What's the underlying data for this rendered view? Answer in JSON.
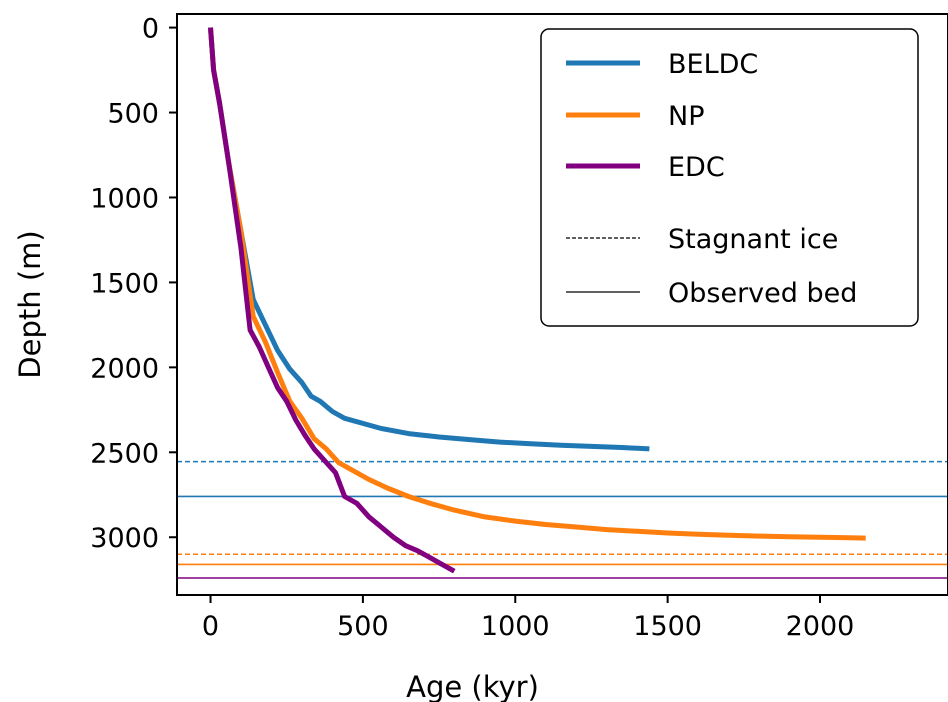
{
  "chart_data": {
    "type": "line",
    "xlabel": "Age (kyr)",
    "ylabel": "Depth (m)",
    "xlim": [
      -110,
      2420
    ],
    "ylim": [
      3340,
      -80
    ],
    "y_inverted": true,
    "xticks": [
      0,
      500,
      1000,
      1500,
      2000
    ],
    "yticks": [
      0,
      500,
      1000,
      1500,
      2000,
      2500,
      3000
    ],
    "grid": false,
    "legend_position": "top-right",
    "series": [
      {
        "name": "BELDC",
        "color": "#1f77b4",
        "x": [
          0,
          10,
          30,
          60,
          100,
          140,
          180,
          220,
          260,
          300,
          330,
          360,
          400,
          440,
          500,
          560,
          650,
          750,
          850,
          950,
          1050,
          1150,
          1250,
          1350,
          1440
        ],
        "y": [
          0,
          250,
          450,
          800,
          1200,
          1600,
          1750,
          1900,
          2010,
          2090,
          2170,
          2200,
          2260,
          2300,
          2330,
          2360,
          2390,
          2410,
          2425,
          2440,
          2450,
          2458,
          2465,
          2472,
          2480
        ]
      },
      {
        "name": "NP",
        "color": "#ff7f0e",
        "x": [
          0,
          10,
          30,
          60,
          100,
          140,
          180,
          220,
          260,
          300,
          340,
          380,
          420,
          460,
          520,
          580,
          650,
          720,
          800,
          900,
          1000,
          1100,
          1200,
          1300,
          1400,
          1500,
          1600,
          1700,
          1800,
          1900,
          2000,
          2100,
          2150
        ],
        "y": [
          0,
          250,
          450,
          800,
          1200,
          1700,
          1850,
          2030,
          2200,
          2300,
          2420,
          2480,
          2560,
          2600,
          2660,
          2710,
          2760,
          2800,
          2840,
          2880,
          2905,
          2925,
          2940,
          2955,
          2965,
          2975,
          2982,
          2988,
          2993,
          2997,
          3000,
          3003,
          3005
        ]
      },
      {
        "name": "EDC",
        "color": "#800080",
        "x": [
          0,
          10,
          30,
          60,
          100,
          130,
          160,
          190,
          220,
          250,
          280,
          310,
          340,
          380,
          410,
          440,
          480,
          520,
          560,
          600,
          640,
          680,
          720,
          760,
          800
        ],
        "y": [
          0,
          250,
          450,
          800,
          1300,
          1780,
          1880,
          2000,
          2120,
          2200,
          2310,
          2400,
          2480,
          2560,
          2620,
          2760,
          2800,
          2880,
          2940,
          3000,
          3050,
          3080,
          3120,
          3160,
          3200
        ]
      }
    ],
    "reference_lines": [
      {
        "series": "BELDC",
        "kind": "Stagnant ice",
        "depth": 2555,
        "color": "#1f77b4",
        "style": "dashed"
      },
      {
        "series": "BELDC",
        "kind": "Observed bed",
        "depth": 2760,
        "color": "#1f77b4",
        "style": "solid"
      },
      {
        "series": "NP",
        "kind": "Stagnant ice",
        "depth": 3100,
        "color": "#ff7f0e",
        "style": "dashed"
      },
      {
        "series": "NP",
        "kind": "Observed bed",
        "depth": 3160,
        "color": "#ff7f0e",
        "style": "solid"
      },
      {
        "series": "EDC",
        "kind": "Observed bed",
        "depth": 3240,
        "color": "#800080",
        "style": "solid"
      }
    ],
    "legend": [
      {
        "label": "BELDC",
        "color": "#1f77b4",
        "style": "thick"
      },
      {
        "label": "NP",
        "color": "#ff7f0e",
        "style": "thick"
      },
      {
        "label": "EDC",
        "color": "#800080",
        "style": "thick"
      },
      {
        "label": "Stagnant ice",
        "color": "#000000",
        "style": "dashed"
      },
      {
        "label": "Observed bed",
        "color": "#000000",
        "style": "solid"
      }
    ]
  }
}
